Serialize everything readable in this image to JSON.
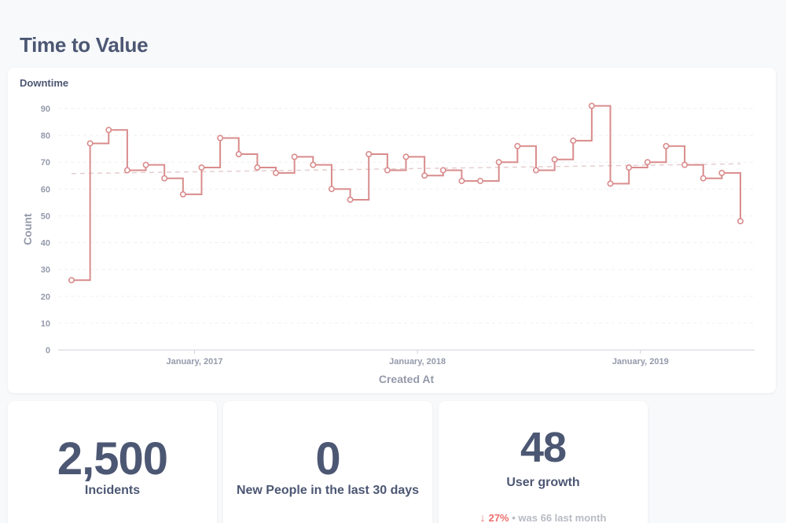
{
  "dashboard": {
    "title": "Time to Value"
  },
  "chart_card": {
    "title": "Downtime"
  },
  "chart_data": {
    "type": "line",
    "step": true,
    "xlabel": "Created At",
    "ylabel": "Count",
    "ylim": [
      0,
      90
    ],
    "yticks": [
      0,
      10,
      20,
      30,
      40,
      50,
      60,
      70,
      80,
      90
    ],
    "xtick_labels": [
      "January, 2017",
      "January, 2018",
      "January, 2019"
    ],
    "grid": true,
    "trendline": true,
    "color": "#d98c8c",
    "trend_color": "#e6cfcf",
    "series": [
      {
        "values": [
          26,
          77,
          82,
          67,
          69,
          64,
          58,
          68,
          79,
          73,
          68,
          66,
          72,
          69,
          60,
          56,
          73,
          67,
          72,
          65,
          67,
          63,
          63,
          70,
          76,
          67,
          71,
          78,
          91,
          62,
          68,
          70,
          76,
          69,
          64,
          66,
          48
        ]
      }
    ]
  },
  "scalars": [
    {
      "value": "2,500",
      "label": "Incidents"
    },
    {
      "value": "0",
      "label": "New People in the last 30 days"
    },
    {
      "value": "48",
      "label": "User growth",
      "comparison": {
        "percent": "27%",
        "text": "• was 66  last month"
      }
    }
  ],
  "colors": {
    "negative": "#ed6e6e",
    "text": "#4c5773",
    "muted": "#949aab"
  }
}
